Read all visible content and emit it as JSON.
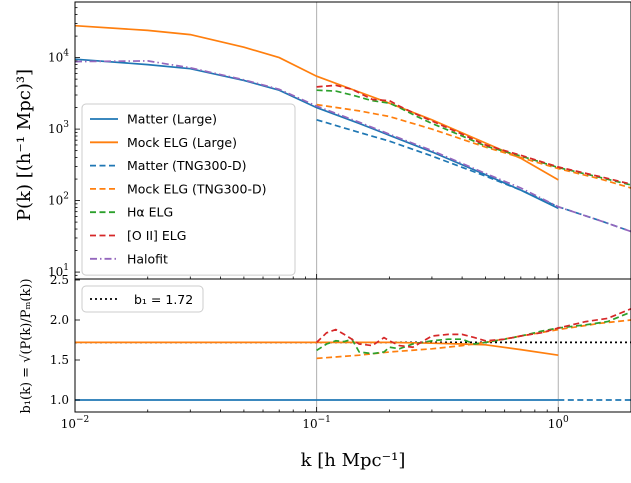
{
  "chart_data": [
    {
      "type": "line",
      "panel": "power-spectrum",
      "xscale": "log",
      "yscale": "log",
      "xlim": [
        0.01,
        2.0
      ],
      "ylim": [
        8,
        60000
      ],
      "ylabel": "P(k) [(h⁻¹ Mpc)³]",
      "grid": "vertical lines at decades",
      "legend_position": "center-left",
      "x_ticks": [
        {
          "value": 0.01,
          "base": "10",
          "exp": "−2"
        },
        {
          "value": 0.1,
          "base": "10",
          "exp": "−1"
        },
        {
          "value": 1.0,
          "base": "10",
          "exp": "0"
        }
      ],
      "y_ticks": [
        {
          "value": 10,
          "base": "10",
          "exp": "1"
        },
        {
          "value": 100,
          "base": "10",
          "exp": "2"
        },
        {
          "value": 1000,
          "base": "10",
          "exp": "3"
        },
        {
          "value": 10000,
          "base": "10",
          "exp": "4"
        }
      ],
      "series": [
        {
          "name": "Matter (Large)",
          "color": "#1f77b4",
          "dash": "solid",
          "x": [
            0.01,
            0.02,
            0.03,
            0.05,
            0.07,
            0.1,
            0.15,
            0.2,
            0.3,
            0.5,
            0.7,
            1.0
          ],
          "y": [
            9500,
            8000,
            7000,
            4800,
            3500,
            2000,
            1200,
            820,
            480,
            230,
            140,
            78
          ]
        },
        {
          "name": "Mock ELG (Large)",
          "color": "#ff7f0e",
          "dash": "solid",
          "x": [
            0.01,
            0.02,
            0.03,
            0.05,
            0.07,
            0.1,
            0.15,
            0.2,
            0.3,
            0.5,
            0.7,
            1.0
          ],
          "y": [
            28000,
            24000,
            21000,
            14000,
            10000,
            5500,
            3300,
            2300,
            1350,
            640,
            390,
            195
          ]
        },
        {
          "name": "Matter (TNG300-D)",
          "color": "#1f77b4",
          "dash": "dashed",
          "x": [
            0.1,
            0.15,
            0.2,
            0.3,
            0.5,
            0.7,
            1.0,
            1.5,
            2.0
          ],
          "y": [
            1350,
            900,
            680,
            420,
            220,
            140,
            82,
            52,
            37
          ]
        },
        {
          "name": "Mock ELG (TNG300-D)",
          "color": "#ff7f0e",
          "dash": "dashed",
          "x": [
            0.1,
            0.15,
            0.2,
            0.3,
            0.5,
            0.7,
            1.0,
            1.5,
            2.0
          ],
          "y": [
            2200,
            1800,
            1500,
            1000,
            560,
            400,
            280,
            200,
            150
          ]
        },
        {
          "name": "Hα ELG",
          "color": "#2ca02c",
          "dash": "dashed",
          "x": [
            0.1,
            0.12,
            0.14,
            0.17,
            0.2,
            0.22,
            0.26,
            0.3,
            0.4,
            0.5,
            0.7,
            1.0,
            1.5,
            2.0
          ],
          "y": [
            3500,
            3400,
            3000,
            2500,
            2300,
            2000,
            1500,
            1200,
            800,
            580,
            420,
            290,
            210,
            165
          ]
        },
        {
          "name": "[O II] ELG",
          "color": "#d62728",
          "dash": "dashed",
          "x": [
            0.1,
            0.12,
            0.14,
            0.17,
            0.2,
            0.22,
            0.26,
            0.3,
            0.4,
            0.5,
            0.7,
            1.0,
            1.5,
            2.0
          ],
          "y": [
            3900,
            4100,
            3600,
            2600,
            2500,
            2100,
            1600,
            1300,
            850,
            600,
            430,
            295,
            215,
            170
          ]
        },
        {
          "name": "Halofit",
          "color": "#9467bd",
          "dash": "dashdot",
          "x": [
            0.01,
            0.02,
            0.03,
            0.05,
            0.07,
            0.1,
            0.15,
            0.2,
            0.3,
            0.5,
            0.7,
            1.0,
            1.5,
            2.0
          ],
          "y": [
            8800,
            9000,
            7200,
            4900,
            3600,
            2100,
            1250,
            850,
            500,
            240,
            150,
            82,
            52,
            37
          ]
        }
      ]
    },
    {
      "type": "line",
      "panel": "bias",
      "xscale": "log",
      "yscale": "linear",
      "xlim": [
        0.01,
        2.0
      ],
      "ylim": [
        0.85,
        2.5
      ],
      "xlabel": "k [h Mpc⁻¹]",
      "ylabel": "b₁(k) = √(P(k)/Pₘ(k))",
      "grid": "vertical lines at decades",
      "legend_position": "top-left",
      "y_ticks": [
        "1.0",
        "1.5",
        "2.0",
        "2.5"
      ],
      "reference": {
        "name": "b₁ = 1.72",
        "value": 1.72,
        "color": "#000000",
        "dash": "dotted"
      },
      "series": [
        {
          "name": "Matter (Large)",
          "color": "#1f77b4",
          "dash": "solid",
          "x": [
            0.01,
            1.0
          ],
          "y": [
            1.0,
            1.0
          ]
        },
        {
          "name": "Matter (TNG300-D)",
          "color": "#1f77b4",
          "dash": "dashed",
          "x": [
            1.0,
            2.0
          ],
          "y": [
            1.0,
            1.0
          ]
        },
        {
          "name": "Mock ELG (Large)",
          "color": "#ff7f0e",
          "dash": "solid",
          "x": [
            0.01,
            0.1,
            0.2,
            0.3,
            0.4,
            0.5,
            0.7,
            1.0
          ],
          "y": [
            1.72,
            1.72,
            1.72,
            1.71,
            1.7,
            1.69,
            1.63,
            1.56
          ]
        },
        {
          "name": "Mock ELG (TNG300-D)",
          "color": "#ff7f0e",
          "dash": "dashed",
          "x": [
            0.1,
            0.15,
            0.2,
            0.3,
            0.4,
            0.5,
            0.7,
            1.0,
            1.5,
            2.0
          ],
          "y": [
            1.52,
            1.56,
            1.6,
            1.64,
            1.68,
            1.72,
            1.8,
            1.88,
            1.96,
            2.0
          ]
        },
        {
          "name": "Hα ELG",
          "color": "#2ca02c",
          "dash": "dashed",
          "x": [
            0.1,
            0.11,
            0.12,
            0.13,
            0.14,
            0.15,
            0.17,
            0.19,
            0.2,
            0.22,
            0.25,
            0.3,
            0.35,
            0.4,
            0.45,
            0.5,
            0.6,
            0.7,
            0.85,
            1.0,
            1.3,
            1.6,
            2.0
          ],
          "y": [
            1.62,
            1.7,
            1.74,
            1.73,
            1.76,
            1.6,
            1.58,
            1.6,
            1.66,
            1.64,
            1.7,
            1.74,
            1.76,
            1.76,
            1.7,
            1.72,
            1.76,
            1.8,
            1.86,
            1.9,
            1.94,
            1.98,
            2.1
          ]
        },
        {
          "name": "[O II] ELG",
          "color": "#d62728",
          "dash": "dashed",
          "x": [
            0.1,
            0.11,
            0.12,
            0.13,
            0.14,
            0.15,
            0.17,
            0.19,
            0.2,
            0.22,
            0.25,
            0.3,
            0.35,
            0.4,
            0.45,
            0.5,
            0.6,
            0.7,
            0.85,
            1.0,
            1.3,
            1.6,
            2.0
          ],
          "y": [
            1.72,
            1.84,
            1.88,
            1.82,
            1.76,
            1.7,
            1.68,
            1.78,
            1.74,
            1.68,
            1.66,
            1.8,
            1.82,
            1.82,
            1.78,
            1.74,
            1.76,
            1.8,
            1.84,
            1.9,
            1.98,
            2.02,
            2.14
          ]
        }
      ]
    }
  ]
}
